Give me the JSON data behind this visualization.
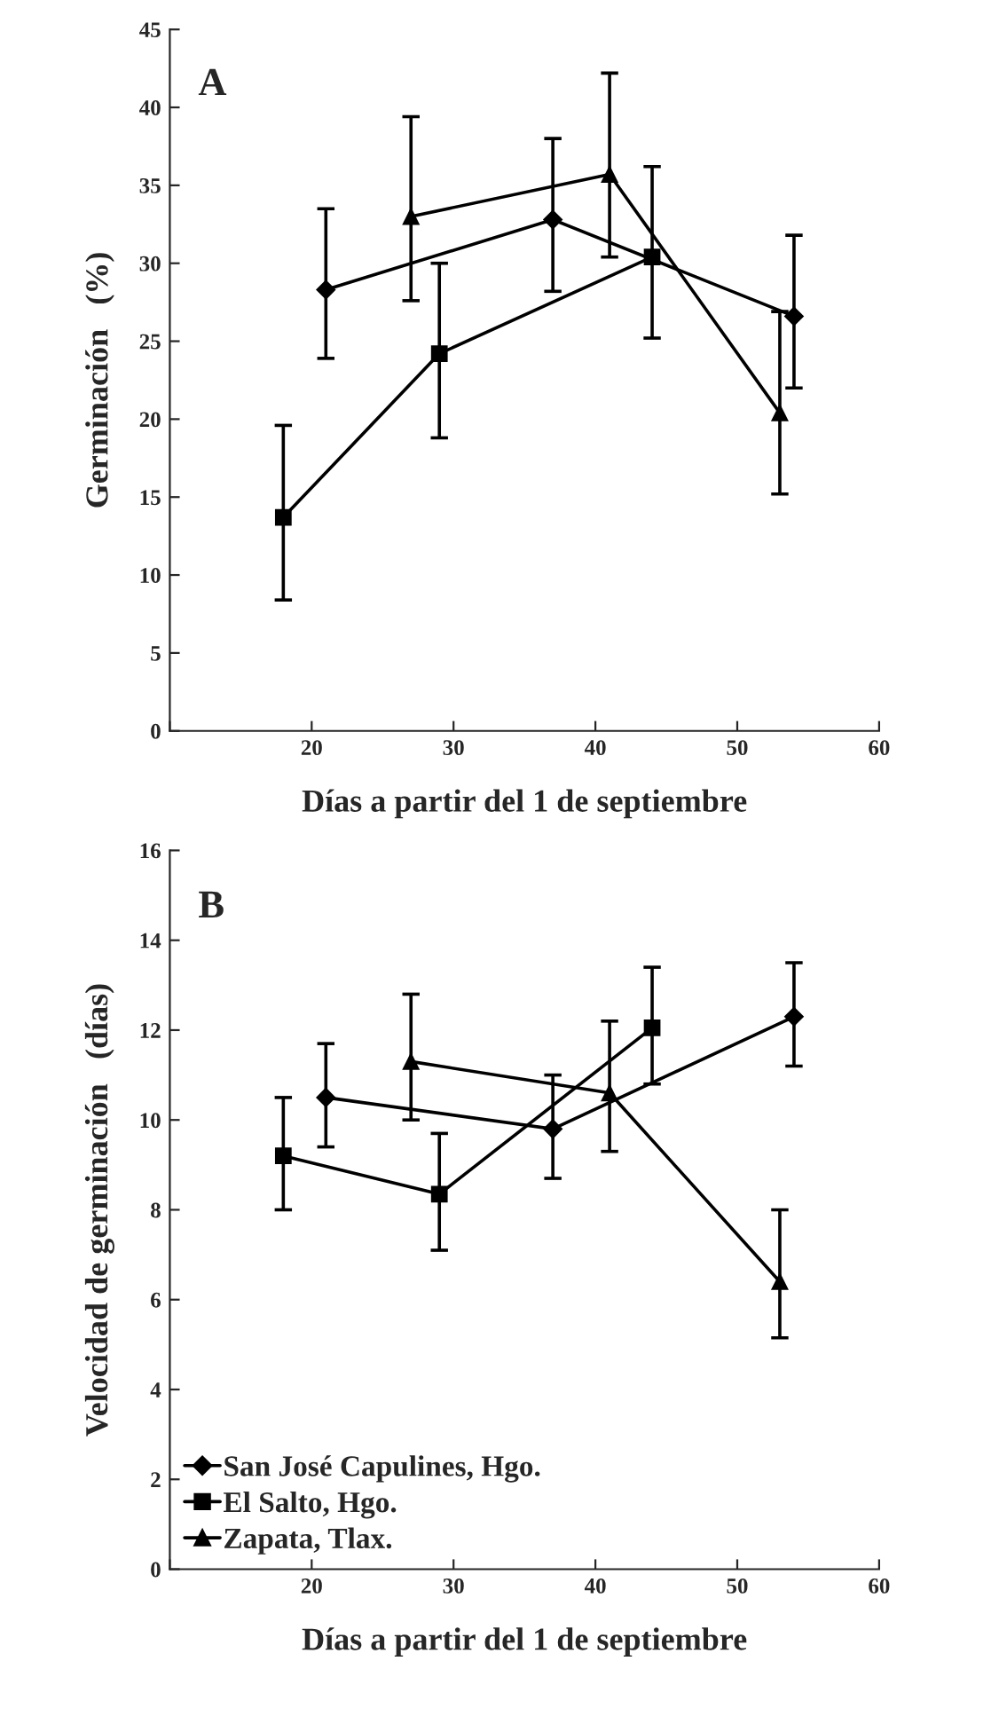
{
  "chart_data": [
    {
      "type": "line",
      "xlabel": "Días a partir del 1 de septiembre",
      "ylabel": "Germinación   (%)",
      "annotations": [
        "A"
      ],
      "xlim": [
        10,
        60
      ],
      "xticks": [
        {
          "value": 10,
          "label": null
        },
        20,
        30,
        40,
        50,
        60
      ],
      "ylim": [
        0,
        45
      ],
      "yticks": [
        0,
        5,
        10,
        15,
        20,
        25,
        30,
        35,
        40,
        45
      ],
      "grid": false,
      "legend": false,
      "line_style": "solid",
      "series": [
        {
          "color": "#000000",
          "marker": "diamond",
          "x": [
            21,
            37,
            54
          ],
          "values": [
            28.3,
            32.8,
            26.6
          ],
          "errors": [
            [
              23.9,
              33.5
            ],
            [
              28.2,
              38.0
            ],
            [
              22.0,
              31.8
            ]
          ]
        },
        {
          "color": "#000000",
          "marker": "square",
          "x": [
            18,
            29,
            44
          ],
          "values": [
            13.7,
            24.2,
            30.4
          ],
          "errors": [
            [
              8.4,
              19.6
            ],
            [
              18.8,
              30.0
            ],
            [
              25.2,
              36.2
            ]
          ]
        },
        {
          "color": "#000000",
          "marker": "triangle",
          "x": [
            27,
            41,
            53
          ],
          "values": [
            33.0,
            35.7,
            20.4
          ],
          "errors": [
            [
              27.6,
              39.4
            ],
            [
              30.4,
              42.2
            ],
            [
              15.2,
              26.9
            ]
          ]
        }
      ]
    },
    {
      "type": "line",
      "xlabel": "Días a partir del 1 de septiembre",
      "ylabel": "Velocidad de germinación   (días)",
      "annotations": [
        "B"
      ],
      "xlim": [
        10,
        60
      ],
      "xticks": [
        {
          "value": 10,
          "label": null
        },
        20,
        30,
        40,
        50,
        60
      ],
      "ylim": [
        0,
        16
      ],
      "yticks": [
        0,
        2,
        4,
        6,
        8,
        10,
        12,
        14,
        16
      ],
      "grid": false,
      "legend": "bottom left",
      "line_style": "solid",
      "series": [
        {
          "name": "San José Capulines, Hgo.",
          "color": "#000000",
          "marker": "diamond",
          "x": [
            21,
            37,
            54
          ],
          "values": [
            10.5,
            9.8,
            12.3
          ],
          "errors": [
            [
              9.4,
              11.7
            ],
            [
              8.7,
              11.0
            ],
            [
              11.2,
              13.5
            ]
          ]
        },
        {
          "name": "El Salto, Hgo.",
          "color": "#000000",
          "marker": "square",
          "x": [
            18,
            29,
            44
          ],
          "values": [
            9.2,
            8.35,
            12.05
          ],
          "errors": [
            [
              8.0,
              10.5
            ],
            [
              7.1,
              9.7
            ],
            [
              10.8,
              13.4
            ]
          ]
        },
        {
          "name": "Zapata, Tlax.",
          "color": "#000000",
          "marker": "triangle",
          "x": [
            27,
            41,
            53
          ],
          "values": [
            11.3,
            10.6,
            6.4
          ],
          "errors": [
            [
              10.0,
              12.8
            ],
            [
              9.3,
              12.2
            ],
            [
              5.15,
              8.0
            ]
          ]
        }
      ]
    }
  ]
}
